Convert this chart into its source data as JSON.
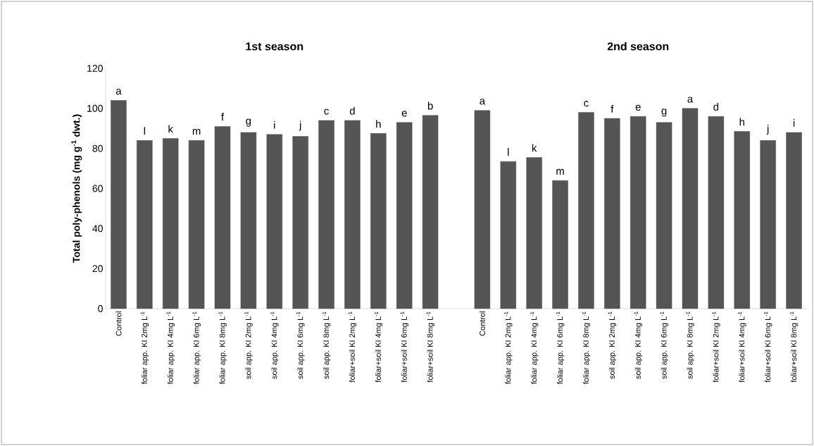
{
  "chart_data": {
    "type": "bar",
    "ylabel": "Total poly-phenols  (mg g$^{-1}$ dwt.)",
    "annotations": [
      "1st season",
      "2nd season"
    ],
    "categories": [
      "Control",
      "foliar app. KI 2mg L$^{-1}$",
      "foliar app. KI 4mg L$^{-1}$",
      "foliar app. KI 6mg L$^{-1}$",
      "foliar app. KI 8mg L$^{-1}$",
      "soil app. KI 2mg L$^{-1}$",
      "soil app. KI 4mg L$^{-1}$",
      "soil app. KI 6mg L$^{-1}$",
      "soil app. KI 8mg L$^{-1}$",
      "foliar+soil KI 2mg L$^{-1}$",
      "foliar+soil KI 4mg L$^{-1}$",
      "foliar+soil KI 6mg L$^{-1}$",
      "foliar+soil KI 8mg L$^{-1}$",
      null,
      "Control",
      "foliar app. KI 2mg L$^{-1}$",
      "foliar app. KI 4mg L$^{-1}$",
      "foliar app. KI 6mg L$^{-1}$",
      "foliar app. KI 8mg L$^{-1}$",
      "soil app. KI 2mg L$^{-1}$",
      "soil app. KI 4mg L$^{-1}$",
      "soil app. KI 6mg L$^{-1}$",
      "soil app. KI 8mg L$^{-1}$",
      "foliar+soil KI 2mg L$^{-1}$",
      "foliar+soil KI 4mg L$^{-1}$",
      "foliar+soil KI 6mg L$^{-1}$",
      "foliar+soil KI 8mg L$^{-1}$"
    ],
    "values": [
      104,
      84,
      85,
      84,
      91,
      88,
      87,
      86,
      94,
      94,
      87.5,
      93,
      96.5,
      null,
      99,
      73.5,
      75.5,
      64,
      98,
      95,
      96,
      93,
      100,
      96,
      88.5,
      84,
      88
    ],
    "value_labels": [
      "a",
      "l",
      "k",
      "m",
      "f",
      "g",
      "i",
      "j",
      "c",
      "d",
      "h",
      "e",
      "b",
      null,
      "a",
      "l",
      "k",
      "m",
      "c",
      "f",
      "e",
      "g",
      "a",
      "d",
      "h",
      "j",
      "i"
    ],
    "color": "#555555",
    "ylim": [
      0,
      120
    ],
    "yticks": [
      0,
      20,
      40,
      60,
      80,
      100,
      120
    ]
  }
}
